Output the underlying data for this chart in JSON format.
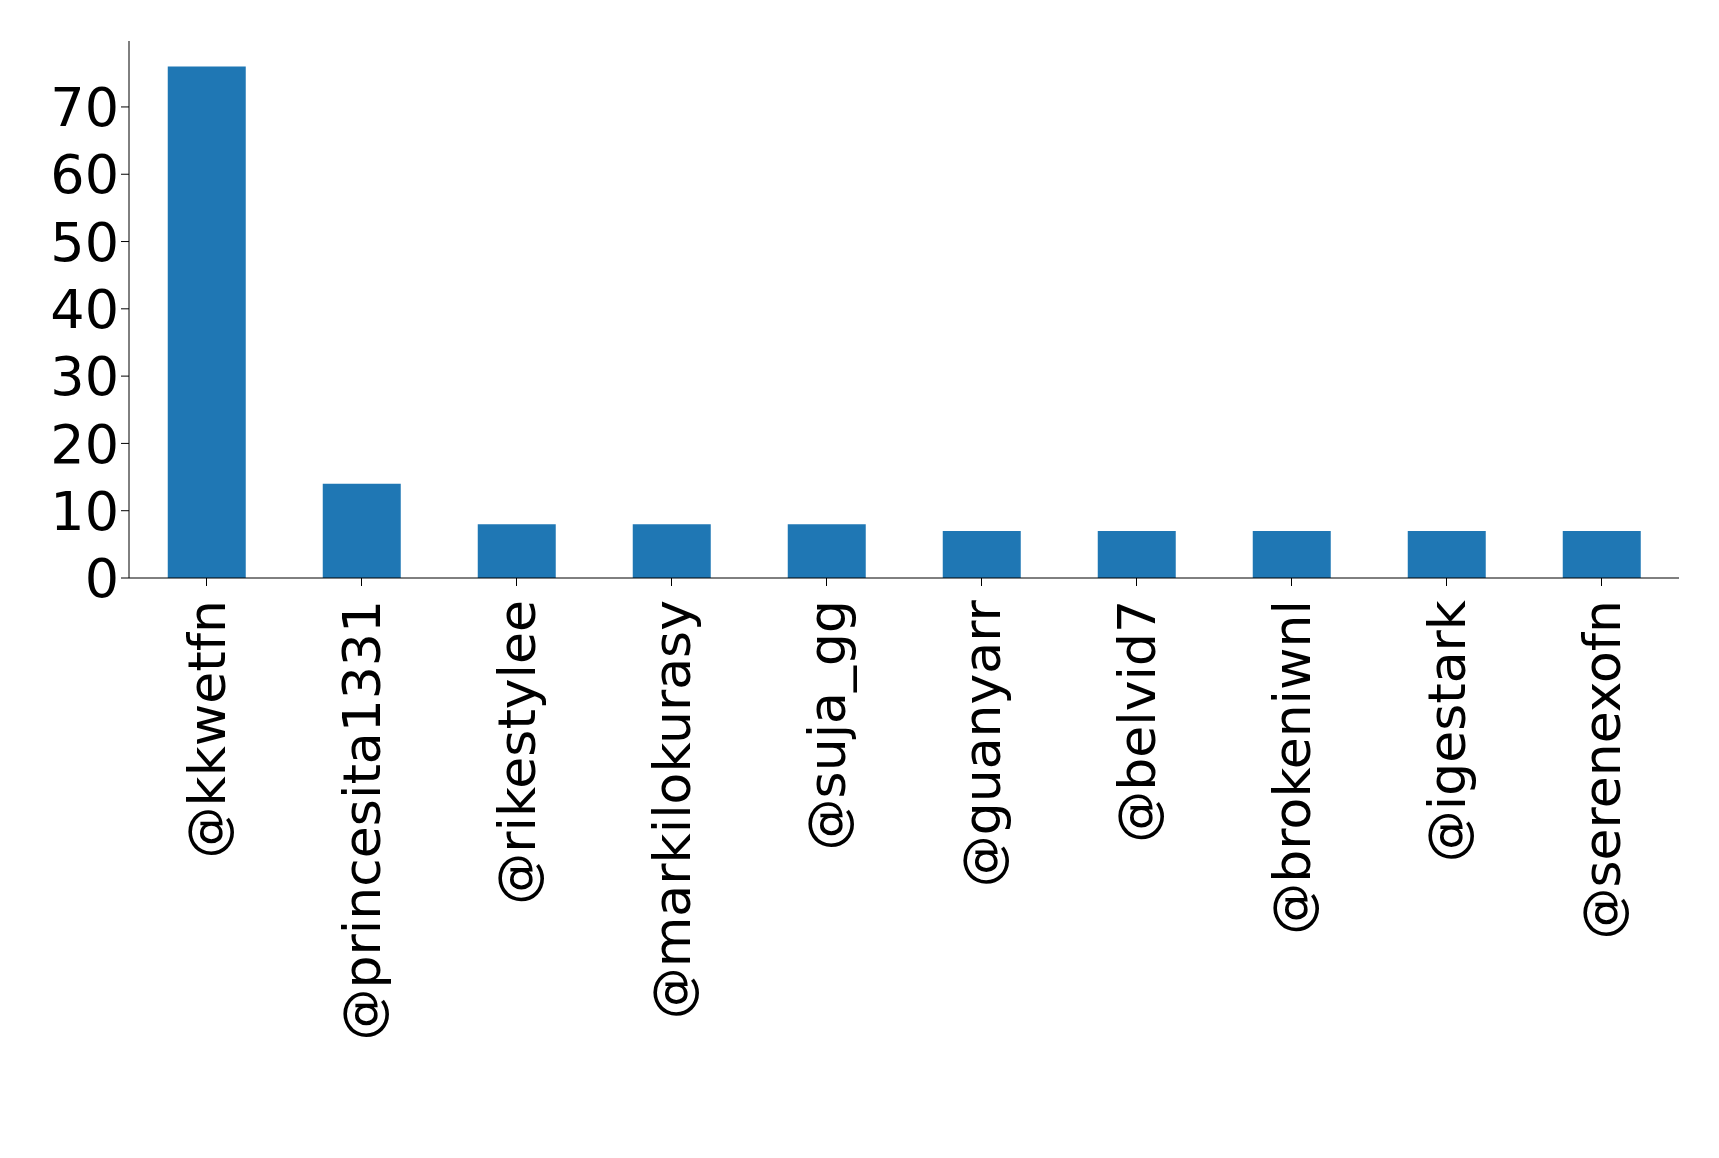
{
  "chart_data": {
    "type": "bar",
    "categories": [
      "@kkwetfn",
      "@princesita1331",
      "@rikestylee",
      "@markilokurasy",
      "@suja_gg",
      "@guanyarr",
      "@belvid7",
      "@brokeniwnl",
      "@igestark",
      "@serenexofn"
    ],
    "values": [
      76,
      14,
      8,
      8,
      8,
      7,
      7,
      7,
      7,
      7
    ],
    "color": "#1f77b4",
    "ylim": [
      0,
      79.8
    ],
    "yticks": [
      0,
      10,
      20,
      30,
      40,
      50,
      60,
      70
    ],
    "grid": false,
    "legend": false
  }
}
